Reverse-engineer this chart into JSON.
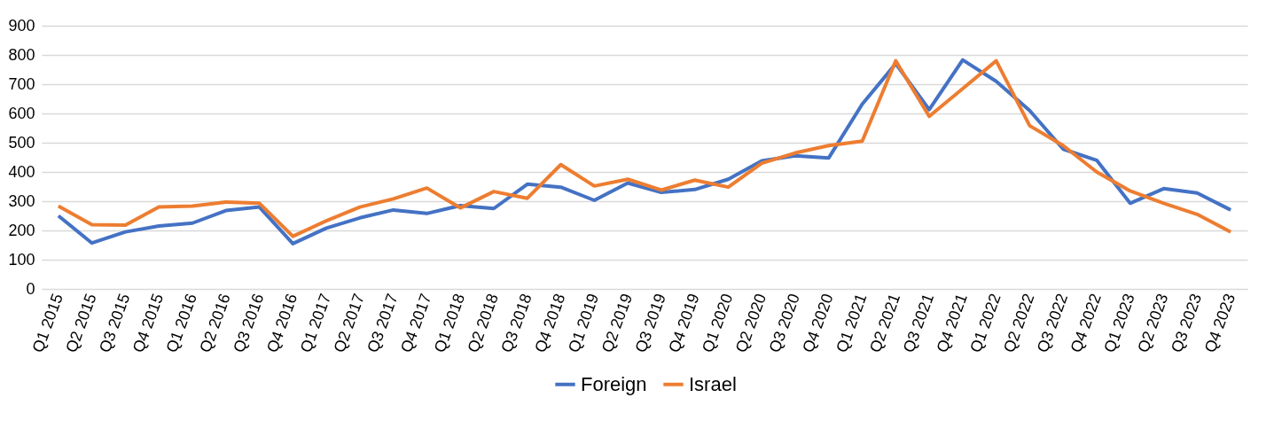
{
  "chart_data": {
    "type": "line",
    "categories": [
      "Q1 2015",
      "Q2 2015",
      "Q3 2015",
      "Q4 2015",
      "Q1 2016",
      "Q2 2016",
      "Q3 2016",
      "Q4 2016",
      "Q1 2017",
      "Q2 2017",
      "Q3 2017",
      "Q4 2017",
      "Q1 2018",
      "Q2 2018",
      "Q3 2018",
      "Q4 2018",
      "Q1 2019",
      "Q2 2019",
      "Q3 2019",
      "Q4 2019",
      "Q1 2020",
      "Q2 2020",
      "Q3 2020",
      "Q4 2020",
      "Q1 2021",
      "Q2 2021",
      "Q3 2021",
      "Q4 2021",
      "Q1 2022",
      "Q2 2022",
      "Q3 2022",
      "Q4 2022",
      "Q1 2023",
      "Q2 2023",
      "Q3 2023",
      "Q4 2023"
    ],
    "series": [
      {
        "name": "Foreign",
        "color": "#4472c4",
        "values": [
          250,
          157,
          195,
          215,
          225,
          268,
          280,
          155,
          208,
          243,
          270,
          258,
          285,
          275,
          358,
          348,
          303,
          362,
          330,
          340,
          375,
          438,
          455,
          448,
          632,
          770,
          613,
          783,
          710,
          610,
          478,
          440,
          293,
          343,
          328,
          270
        ]
      },
      {
        "name": "Israel",
        "color": "#ed7d31",
        "values": [
          283,
          220,
          218,
          280,
          283,
          297,
          293,
          180,
          233,
          280,
          308,
          345,
          277,
          333,
          310,
          425,
          352,
          375,
          338,
          372,
          348,
          430,
          465,
          490,
          505,
          780,
          590,
          685,
          780,
          558,
          490,
          400,
          335,
          293,
          255,
          195
        ]
      }
    ],
    "ylim": [
      0,
      900
    ],
    "yticks": [
      0,
      100,
      200,
      300,
      400,
      500,
      600,
      700,
      800,
      900
    ],
    "grid": "y",
    "legend": "bottom",
    "marker": "none",
    "line_style": "solid"
  }
}
